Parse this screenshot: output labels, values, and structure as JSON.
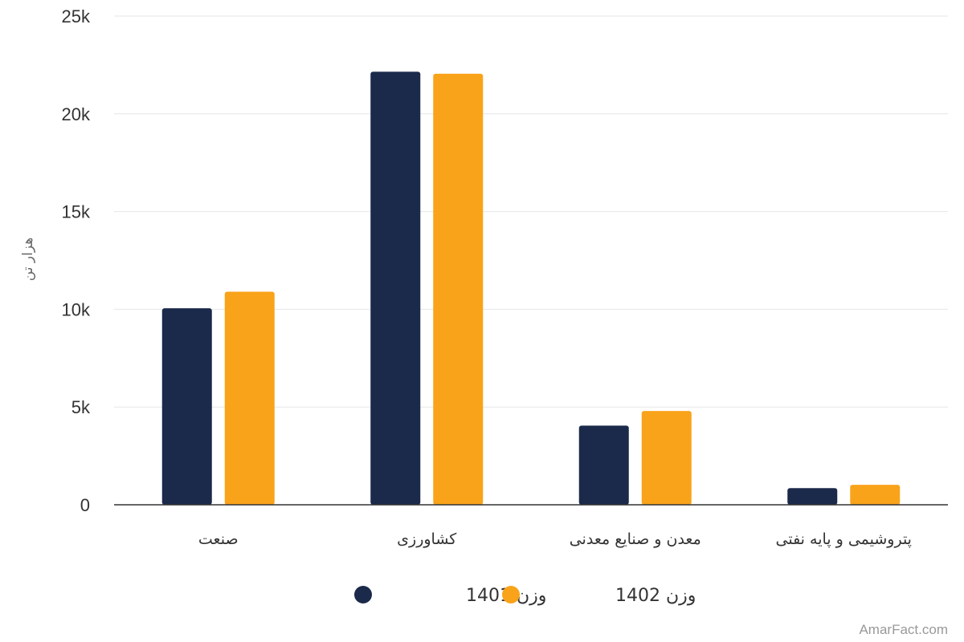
{
  "chart_data": {
    "type": "bar",
    "categories": [
      "صنعت",
      "کشاورزی",
      "معدن و صنایع معدنی",
      "پتروشیمی و پایه نفتی"
    ],
    "series": [
      {
        "name": "وزن 1401",
        "values": [
          10050,
          22150,
          4050,
          850
        ],
        "color": "#1b2a4a"
      },
      {
        "name": "وزن 1402",
        "values": [
          10900,
          22050,
          4800,
          1020
        ],
        "color": "#f9a31a"
      }
    ],
    "title": "",
    "xlabel": "",
    "ylabel": "هزار تن",
    "ylim": [
      0,
      25000
    ],
    "yticks": [
      0,
      5000,
      10000,
      15000,
      20000,
      25000
    ],
    "ytick_labels": [
      "0",
      "5k",
      "10k",
      "15k",
      "20k",
      "25k"
    ],
    "grid": true,
    "legend_position": "bottom-center"
  },
  "credit": "AmarFact.com"
}
